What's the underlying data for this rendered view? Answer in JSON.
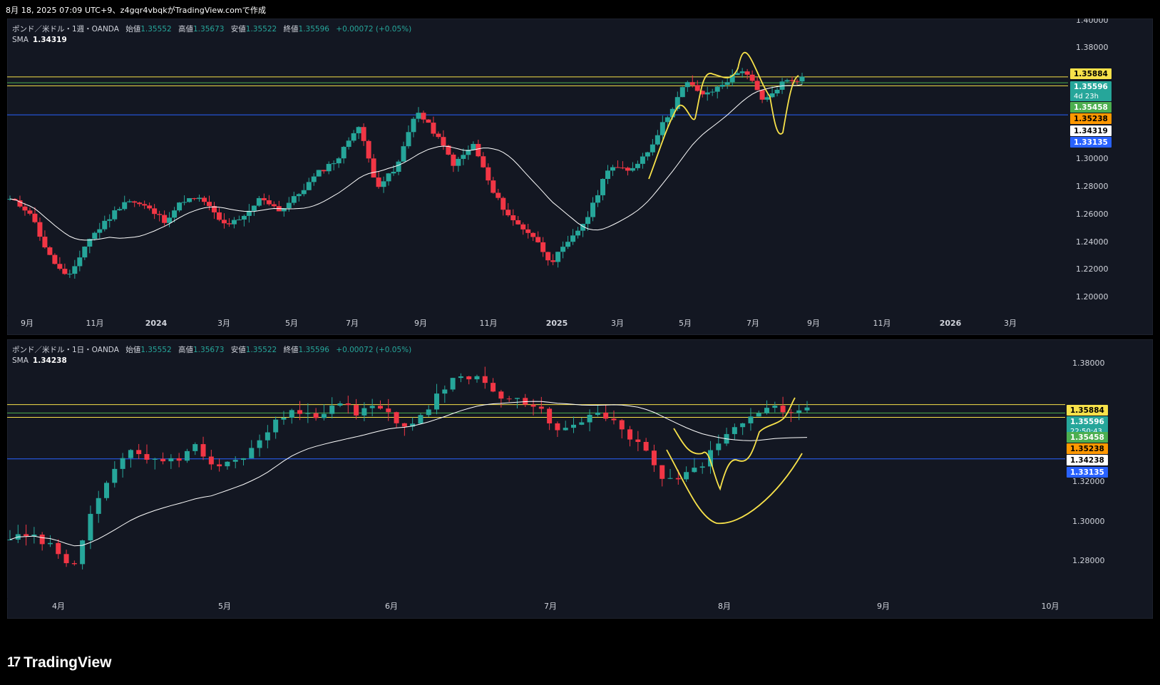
{
  "header": "8月 18, 2025 07:09 UTC+9、z4gqr4vbqkがTradingView.comで作成",
  "brand": {
    "name": "TradingView",
    "mark": "17"
  },
  "colors": {
    "bg": "#131722",
    "up": "#26a69a",
    "down": "#f23645",
    "sma": "#ffffff",
    "yellow": "#f7e14a",
    "blue": "#2962ff"
  },
  "panels": [
    {
      "legend": {
        "symbol": "ポンド／米ドル・1週・OANDA",
        "o_label": "始値",
        "o": "1.35552",
        "h_label": "高値",
        "h": "1.35673",
        "l_label": "安値",
        "l": "1.35522",
        "c_label": "終値",
        "c": "1.35596",
        "chg": "+0.00072 (+0.05%)"
      },
      "sma": {
        "label": "SMA",
        "value": "1.34319"
      },
      "axis": {
        "y": [
          "1.40000",
          "1.38000",
          "1.30000",
          "1.28000",
          "1.26000",
          "1.24000",
          "1.22000",
          "1.20000"
        ],
        "x": [
          "9月",
          "11月",
          "2024",
          "3月",
          "5月",
          "7月",
          "9月",
          "11月",
          "2025",
          "3月",
          "5月",
          "7月",
          "9月",
          "11月",
          "2026",
          "3月"
        ]
      },
      "tags": [
        {
          "text": "1.35884",
          "bg": "#f7e14a",
          "fg": "#000000"
        },
        {
          "text": "1.35596",
          "bg": "#26a69a",
          "fg": "#ffffff",
          "sub": "4d 23h"
        },
        {
          "text": "1.35458",
          "bg": "#4caf50",
          "fg": "#ffffff"
        },
        {
          "text": "1.35238",
          "bg": "#ff9800",
          "fg": "#000000"
        },
        {
          "text": "1.34319",
          "bg": "#ffffff",
          "fg": "#000000"
        },
        {
          "text": "1.33135",
          "bg": "#2962ff",
          "fg": "#ffffff"
        }
      ]
    },
    {
      "legend": {
        "symbol": "ポンド／米ドル・1日・OANDA",
        "o_label": "始値",
        "o": "1.35552",
        "h_label": "高値",
        "h": "1.35673",
        "l_label": "安値",
        "l": "1.35522",
        "c_label": "終値",
        "c": "1.35596",
        "chg": "+0.00072 (+0.05%)"
      },
      "sma": {
        "label": "SMA",
        "value": "1.34238"
      },
      "axis": {
        "y": [
          "1.38000",
          "1.32000",
          "1.30000",
          "1.28000"
        ],
        "x": [
          "4月",
          "5月",
          "6月",
          "7月",
          "8月",
          "9月",
          "10月"
        ]
      },
      "tags": [
        {
          "text": "1.35884",
          "bg": "#f7e14a",
          "fg": "#000000"
        },
        {
          "text": "1.35596",
          "bg": "#26a69a",
          "fg": "#ffffff",
          "sub": "22:50:43"
        },
        {
          "text": "1.35458",
          "bg": "#4caf50",
          "fg": "#ffffff"
        },
        {
          "text": "1.35238",
          "bg": "#ff9800",
          "fg": "#000000"
        },
        {
          "text": "1.34238",
          "bg": "#ffffff",
          "fg": "#000000"
        },
        {
          "text": "1.33135",
          "bg": "#2962ff",
          "fg": "#ffffff"
        }
      ]
    }
  ],
  "chart_data": [
    {
      "type": "candlestick",
      "title": "ポンド／米ドル・1週・OANDA",
      "ylim": [
        1.195,
        1.4
      ],
      "x_ticks": [
        "9月",
        "11月",
        "2024",
        "3月",
        "5月",
        "7月",
        "9月",
        "11月",
        "2025",
        "3月",
        "5月",
        "7月",
        "9月",
        "11月",
        "2026",
        "3月"
      ],
      "horizontal_lines": [
        {
          "value": 1.35884,
          "color": "#f7e14a"
        },
        {
          "value": 1.35238,
          "color": "#f7e14a"
        },
        {
          "value": 1.35458,
          "color": "#4caf50"
        },
        {
          "value": 1.33135,
          "color": "#2962ff"
        }
      ],
      "close_anchors": [
        1.27,
        1.262,
        1.23,
        1.212,
        1.24,
        1.255,
        1.27,
        1.265,
        1.255,
        1.27,
        1.27,
        1.252,
        1.255,
        1.272,
        1.262,
        1.275,
        1.29,
        1.3,
        1.325,
        1.28,
        1.292,
        1.335,
        1.318,
        1.295,
        1.31,
        1.275,
        1.255,
        1.245,
        1.225,
        1.24,
        1.26,
        1.295,
        1.29,
        1.305,
        1.33,
        1.355,
        1.345,
        1.355,
        1.365,
        1.34,
        1.355,
        1.358
      ]
    },
    {
      "type": "candlestick",
      "title": "ポンド／米ドル・1日・OANDA",
      "ylim": [
        1.27,
        1.39
      ],
      "x_ticks": [
        "4月",
        "5月",
        "6月",
        "7月",
        "8月",
        "9月",
        "10月"
      ],
      "horizontal_lines": [
        {
          "value": 1.35884,
          "color": "#f7e14a"
        },
        {
          "value": 1.35238,
          "color": "#f7e14a"
        },
        {
          "value": 1.35458,
          "color": "#4caf50"
        },
        {
          "value": 1.33135,
          "color": "#2962ff"
        }
      ],
      "close_anchors": [
        1.291,
        1.292,
        1.287,
        1.274,
        1.307,
        1.325,
        1.335,
        1.332,
        1.33,
        1.338,
        1.327,
        1.33,
        1.338,
        1.352,
        1.355,
        1.354,
        1.359,
        1.355,
        1.36,
        1.347,
        1.352,
        1.365,
        1.375,
        1.372,
        1.362,
        1.36,
        1.355,
        1.345,
        1.35,
        1.355,
        1.345,
        1.336,
        1.32,
        1.322,
        1.33,
        1.345,
        1.349,
        1.357,
        1.356,
        1.356
      ]
    }
  ]
}
